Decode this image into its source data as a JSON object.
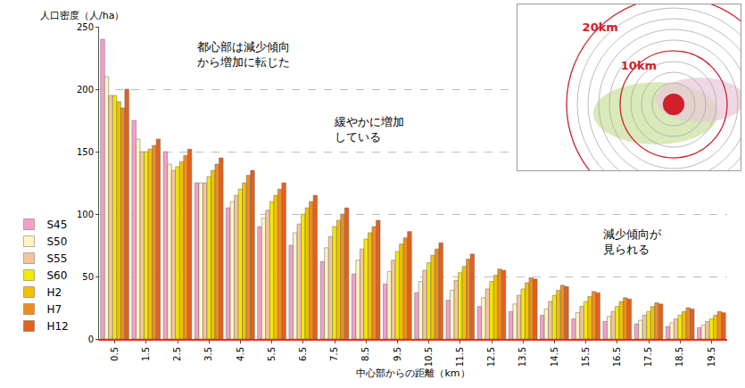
{
  "chart_data": {
    "type": "bar",
    "y_label": "人口密度（人/ha）",
    "x_label": "中心部からの距離（km）",
    "x": [
      0.5,
      1.5,
      2.5,
      3.5,
      4.5,
      5.5,
      6.5,
      7.5,
      8.5,
      9.5,
      10.5,
      11.5,
      12.5,
      13.5,
      14.5,
      15.5,
      16.5,
      17.5,
      18.5,
      19.5
    ],
    "xlim": [
      0,
      20
    ],
    "xticks": [
      0.5,
      1.5,
      2.5,
      3.5,
      4.5,
      5.5,
      6.5,
      7.5,
      8.5,
      9.5,
      10.5,
      11.5,
      12.5,
      13.5,
      14.5,
      15.5,
      16.5,
      17.5,
      18.5,
      19.5
    ],
    "ylim": [
      0,
      250
    ],
    "yticks": [
      0,
      50,
      100,
      150,
      200,
      250
    ],
    "grid": true,
    "legend": "left",
    "series": [
      {
        "name": "S45",
        "color": "#f59fc9",
        "values": [
          240,
          175,
          150,
          125,
          105,
          90,
          75,
          62,
          52,
          44,
          37,
          31,
          26,
          22,
          19,
          16,
          14,
          12,
          10,
          9
        ]
      },
      {
        "name": "S50",
        "color": "#fdf6c0",
        "values": [
          210,
          160,
          140,
          125,
          110,
          97,
          85,
          73,
          63,
          54,
          46,
          39,
          33,
          28,
          24,
          21,
          18,
          15,
          13,
          11
        ]
      },
      {
        "name": "S55",
        "color": "#f7c49a",
        "values": [
          195,
          150,
          135,
          125,
          115,
          103,
          92,
          82,
          72,
          63,
          55,
          47,
          40,
          35,
          30,
          26,
          22,
          19,
          16,
          14
        ]
      },
      {
        "name": "S60",
        "color": "#f2ea00",
        "values": [
          195,
          150,
          138,
          130,
          120,
          110,
          100,
          90,
          80,
          70,
          61,
          53,
          46,
          40,
          35,
          30,
          26,
          22,
          19,
          16
        ]
      },
      {
        "name": "H2",
        "color": "#f5c000",
        "values": [
          190,
          152,
          142,
          135,
          125,
          115,
          105,
          95,
          85,
          76,
          67,
          58,
          51,
          45,
          39,
          34,
          30,
          26,
          22,
          19
        ]
      },
      {
        "name": "H7",
        "color": "#f08c1e",
        "values": [
          185,
          155,
          147,
          140,
          131,
          120,
          110,
          100,
          90,
          81,
          72,
          64,
          56,
          49,
          43,
          38,
          33,
          29,
          25,
          22
        ]
      },
      {
        "name": "H12",
        "color": "#e5601c",
        "values": [
          200,
          160,
          152,
          145,
          135,
          125,
          115,
          105,
          95,
          86,
          77,
          68,
          55,
          48,
          42,
          37,
          32,
          28,
          24,
          21
        ]
      }
    ],
    "annotations": [
      "都心部は減少傾向から増加に転じた",
      "緩やかに増加している",
      "減少傾向が見られる"
    ]
  },
  "inset": {
    "type": "map",
    "ring_step_km": 2,
    "outer_km": 20,
    "labels": [
      {
        "text": "20km",
        "km": 20
      },
      {
        "text": "10km",
        "km": 10
      }
    ]
  }
}
